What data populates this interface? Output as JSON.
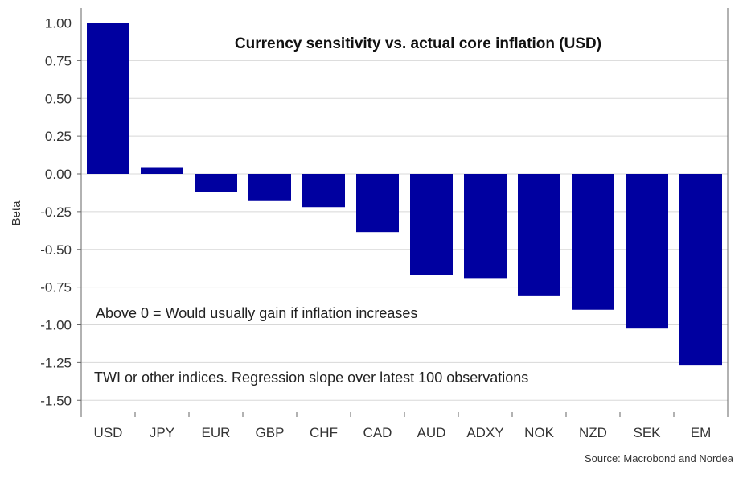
{
  "chart_data": {
    "type": "bar",
    "title": "Currency sensitivity vs. actual core inflation (USD)",
    "xlabel": "",
    "ylabel": "Beta",
    "ylim": [
      -1.6,
      1.05
    ],
    "yticks": [
      "1.00",
      "0.75",
      "0.50",
      "0.25",
      "0.00",
      "-0.25",
      "-0.50",
      "-0.75",
      "-1.00",
      "-1.25",
      "-1.50"
    ],
    "categories": [
      "USD",
      "JPY",
      "EUR",
      "GBP",
      "CHF",
      "CAD",
      "AUD",
      "ADXY",
      "NOK",
      "NZD",
      "SEK",
      "EM"
    ],
    "values": [
      1.0,
      0.04,
      -0.12,
      -0.18,
      -0.22,
      -0.385,
      -0.67,
      -0.69,
      -0.81,
      -0.9,
      -1.025,
      -1.27
    ],
    "bar_color": "#0000a0",
    "grid": true,
    "annotations": [
      "Above 0 = Would usually gain if inflation increases",
      "TWI or other indices. Regression slope over latest 100 observations"
    ],
    "source": "Source: Macrobond and Nordea"
  }
}
